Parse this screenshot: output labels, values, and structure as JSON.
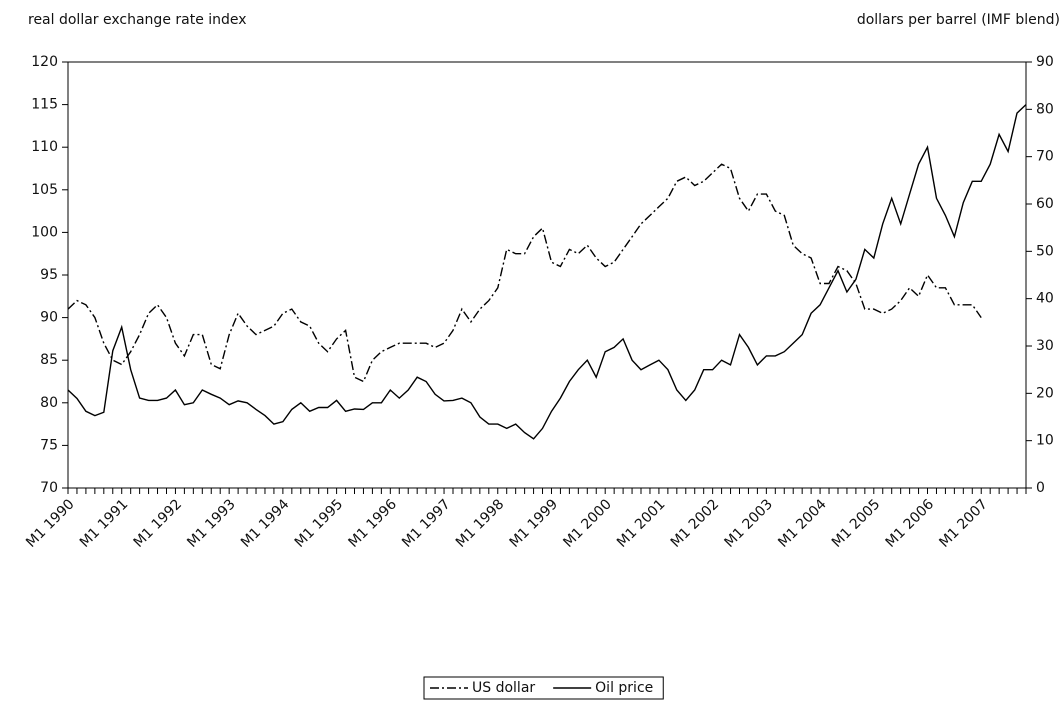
{
  "chart_data": {
    "type": "line",
    "ylabel": "real dollar exchange rate index",
    "y2label": "dollars per barrel (IMF blend)",
    "categories": [
      "M1 1990",
      null,
      null,
      null,
      null,
      null,
      "M1 1991",
      null,
      null,
      null,
      null,
      null,
      "M1 1992",
      null,
      null,
      null,
      null,
      null,
      "M1 1993",
      null,
      null,
      null,
      null,
      null,
      "M1 1994",
      null,
      null,
      null,
      null,
      null,
      "M1 1995",
      null,
      null,
      null,
      null,
      null,
      "M1 1996",
      null,
      null,
      null,
      null,
      null,
      "M1 1997",
      null,
      null,
      null,
      null,
      null,
      "M1 1998",
      null,
      null,
      null,
      null,
      null,
      "M1 1999",
      null,
      null,
      null,
      null,
      null,
      "M1 2000",
      null,
      null,
      null,
      null,
      null,
      "M1 2001",
      null,
      null,
      null,
      null,
      null,
      "M1 2002",
      null,
      null,
      null,
      null,
      null,
      "M1 2003",
      null,
      null,
      null,
      null,
      null,
      "M1 2004",
      null,
      null,
      null,
      null,
      null,
      "M1 2005",
      null,
      null,
      null,
      null,
      null,
      "M1 2006",
      null,
      null,
      null,
      null,
      null,
      "M1 2007",
      null,
      null,
      null,
      null,
      null
    ],
    "series": [
      {
        "name": "US dollar",
        "color": "#000000",
        "dash": "dash-dot",
        "axis": "y",
        "values": [
          91,
          92,
          91.5,
          90,
          87,
          85,
          84.5,
          86,
          88,
          90.5,
          91.5,
          90,
          87,
          85.5,
          88,
          88,
          84.5,
          84,
          88,
          90.5,
          89,
          88,
          88.5,
          89,
          90.5,
          91,
          89.5,
          89,
          87,
          86,
          87.5,
          88.5,
          83,
          82.5,
          85,
          86,
          86.5,
          87,
          87,
          87,
          87,
          86.5,
          87,
          88.5,
          91,
          89.5,
          91,
          92,
          93.5,
          98,
          97.5,
          97.5,
          99.5,
          100.5,
          96.5,
          96,
          98,
          97.5,
          98.5,
          97,
          96,
          96.5,
          98,
          99.5,
          101,
          102,
          103,
          104,
          106,
          106.5,
          105.5,
          106,
          107,
          108,
          107.5,
          104,
          102.5,
          104.5,
          104.5,
          102.5,
          102,
          98.5,
          97.5,
          97,
          94,
          94,
          96,
          95.5,
          94,
          91,
          91,
          90.5,
          91,
          92,
          93.5,
          92.5,
          95,
          93.5,
          93.5,
          91.5,
          91.5,
          91.5,
          90,
          null,
          null,
          null,
          null,
          null
        ]
      },
      {
        "name": "Oil price",
        "color": "#000000",
        "dash": "solid",
        "axis": "y2",
        "values": [
          20.7,
          18.9,
          16.2,
          15.3,
          16,
          29,
          34,
          25,
          19,
          18.5,
          18.5,
          19,
          20.7,
          17.6,
          18,
          20.7,
          19.8,
          19,
          17.6,
          18.4,
          18,
          16.6,
          15.3,
          13.5,
          14,
          16.6,
          18,
          16.2,
          17,
          17,
          18.5,
          16.2,
          16.7,
          16.6,
          18,
          18,
          20.7,
          19,
          20.7,
          23.4,
          22.5,
          19.8,
          18.4,
          18.5,
          19,
          18,
          15,
          13.5,
          13.5,
          12.6,
          13.5,
          11.7,
          10.4,
          12.6,
          16.2,
          19,
          22.5,
          25,
          27,
          23.4,
          28.8,
          29.7,
          31.5,
          27,
          25,
          26,
          27,
          25,
          20.7,
          18.5,
          20.7,
          25,
          25,
          27,
          26,
          32.4,
          29.7,
          26,
          27.9,
          27.9,
          28.8,
          30.6,
          32.4,
          36.9,
          38.7,
          42.3,
          45.9,
          41.4,
          44.1,
          50.4,
          48.6,
          55.8,
          61.2,
          55.8,
          62.1,
          68.4,
          72,
          61.2,
          57.6,
          53.1,
          60.3,
          64.8,
          64.8,
          68.4,
          74.7,
          71.1,
          79.2,
          81
        ]
      }
    ],
    "ylim": [
      70,
      120
    ],
    "yticks": [
      70,
      75,
      80,
      85,
      90,
      95,
      100,
      105,
      110,
      115,
      120
    ],
    "y2lim": [
      0,
      90
    ],
    "y2ticks": [
      0,
      10,
      20,
      30,
      40,
      50,
      60,
      70,
      80,
      90
    ],
    "grid": false,
    "legend": "bottom"
  }
}
